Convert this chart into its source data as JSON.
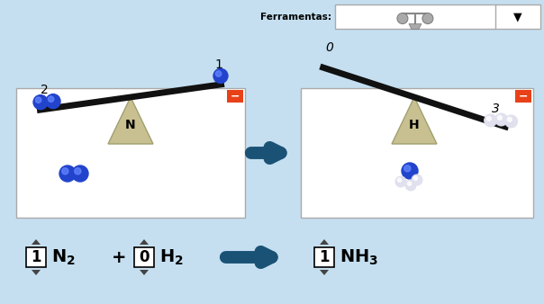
{
  "bg_color": "#c5dff0",
  "white": "#ffffff",
  "orange_red": "#e84118",
  "blue_arrow": "#1a5276",
  "triangle_color": "#c8c090",
  "triangle_edge": "#a0a070",
  "beam_color": "#111111",
  "ball_blue_dark": "#1a3ab8",
  "text_black": "#000000",
  "ferramentas_text": "Ferramentas:",
  "N_label": "N",
  "H_label": "H",
  "eq_coef1": "1",
  "eq_coef2": "0",
  "eq_coef3": "1",
  "balance_N_num_left": "2",
  "balance_N_num_right": "1",
  "balance_H_num_left": "0",
  "balance_H_num_right": "3"
}
